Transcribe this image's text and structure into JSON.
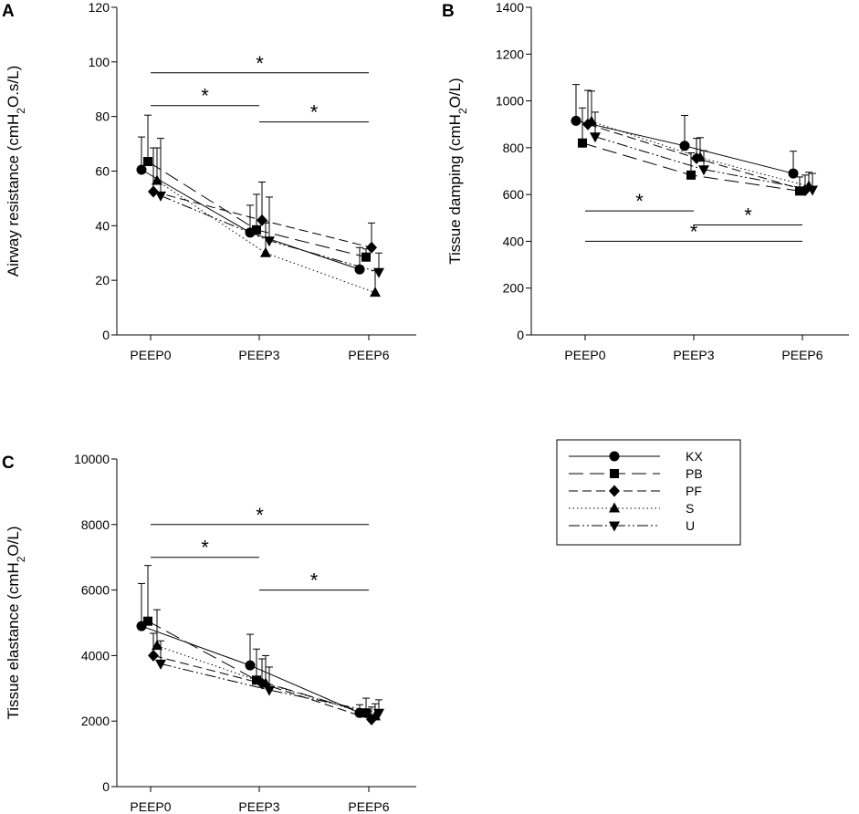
{
  "chart_data": [
    {
      "type": "line",
      "panel": "A",
      "ylabel_prefix": "Airway resistance (cmH",
      "ylabel_sub": "2",
      "ylabel_suffix": "O.s/L)",
      "ylim": [
        0,
        120
      ],
      "yticks": [
        0,
        20,
        40,
        60,
        80,
        100,
        120
      ],
      "categories": [
        "PEEP0",
        "PEEP3",
        "PEEP6"
      ],
      "series": [
        {
          "name": "KX",
          "values": [
            60.5,
            37.5,
            24
          ],
          "err": [
            12,
            10,
            8
          ]
        },
        {
          "name": "PB",
          "values": [
            63.5,
            38.5,
            28.5
          ],
          "err": [
            17,
            13,
            3
          ]
        },
        {
          "name": "PF",
          "values": [
            52.5,
            42,
            32
          ],
          "err": [
            16,
            14,
            9
          ]
        },
        {
          "name": "S",
          "values": [
            56.5,
            30,
            15.5
          ],
          "err": [
            12,
            11,
            8
          ]
        },
        {
          "name": "U",
          "values": [
            51,
            34.5,
            23
          ],
          "err": [
            21,
            16,
            7
          ]
        }
      ],
      "significance": [
        {
          "from": "PEEP0",
          "to": "PEEP6",
          "level": 96,
          "label": "*"
        },
        {
          "from": "PEEP0",
          "to": "PEEP3",
          "level": 84,
          "label": "*"
        },
        {
          "from": "PEEP3",
          "to": "PEEP6",
          "level": 78,
          "label": "*"
        }
      ]
    },
    {
      "type": "line",
      "panel": "B",
      "ylabel_prefix": "Tissue damping (cmH",
      "ylabel_sub": "2",
      "ylabel_suffix": "O/L)",
      "ylim": [
        0,
        1400
      ],
      "yticks": [
        0,
        200,
        400,
        600,
        800,
        1000,
        1200,
        1400
      ],
      "categories": [
        "PEEP0",
        "PEEP3",
        "PEEP6"
      ],
      "series": [
        {
          "name": "KX",
          "values": [
            915,
            808,
            690
          ],
          "err": [
            155,
            130,
            95
          ]
        },
        {
          "name": "PB",
          "values": [
            820,
            683,
            615
          ],
          "err": [
            150,
            95,
            60
          ]
        },
        {
          "name": "PF",
          "values": [
            900,
            755,
            618
          ],
          "err": [
            145,
            85,
            65
          ]
        },
        {
          "name": "S",
          "values": [
            912,
            758,
            635
          ],
          "err": [
            130,
            85,
            60
          ]
        },
        {
          "name": "U",
          "values": [
            847,
            707,
            620
          ],
          "err": [
            105,
            80,
            70
          ]
        }
      ],
      "significance": [
        {
          "from": "PEEP0",
          "to": "PEEP3",
          "level": 530,
          "label": "*"
        },
        {
          "from": "PEEP3",
          "to": "PEEP6",
          "level": 470,
          "label": "*"
        },
        {
          "from": "PEEP0",
          "to": "PEEP6",
          "level": 400,
          "label": "*"
        }
      ]
    },
    {
      "type": "line",
      "panel": "C",
      "ylabel_prefix": "Tissue elastance (cmH",
      "ylabel_sub": "2",
      "ylabel_suffix": "O/L)",
      "ylim": [
        0,
        10000
      ],
      "yticks": [
        0,
        2000,
        4000,
        6000,
        8000,
        10000
      ],
      "categories": [
        "PEEP0",
        "PEEP3",
        "PEEP6"
      ],
      "series": [
        {
          "name": "KX",
          "values": [
            4900,
            3700,
            2250
          ],
          "err": [
            1300,
            950,
            250
          ]
        },
        {
          "name": "PB",
          "values": [
            5050,
            3250,
            2250
          ],
          "err": [
            1700,
            950,
            450
          ]
        },
        {
          "name": "PF",
          "values": [
            4000,
            3150,
            2050
          ],
          "err": [
            680,
            750,
            380
          ]
        },
        {
          "name": "S",
          "values": [
            4300,
            3150,
            2150
          ],
          "err": [
            1100,
            850,
            380
          ]
        },
        {
          "name": "U",
          "values": [
            3750,
            2950,
            2250
          ],
          "err": [
            700,
            700,
            400
          ]
        }
      ],
      "significance": [
        {
          "from": "PEEP0",
          "to": "PEEP6",
          "level": 8000,
          "label": "*"
        },
        {
          "from": "PEEP0",
          "to": "PEEP3",
          "level": 7000,
          "label": "*"
        },
        {
          "from": "PEEP3",
          "to": "PEEP6",
          "level": 6000,
          "label": "*"
        }
      ]
    }
  ],
  "legend": [
    {
      "name": "KX",
      "marker": "circle",
      "dash": "solid"
    },
    {
      "name": "PB",
      "marker": "square",
      "dash": "long-dash"
    },
    {
      "name": "PF",
      "marker": "diamond",
      "dash": "medium-dash"
    },
    {
      "name": "S",
      "marker": "triangle-up",
      "dash": "dotted"
    },
    {
      "name": "U",
      "marker": "triangle-down",
      "dash": "dash-dot-dot"
    }
  ]
}
